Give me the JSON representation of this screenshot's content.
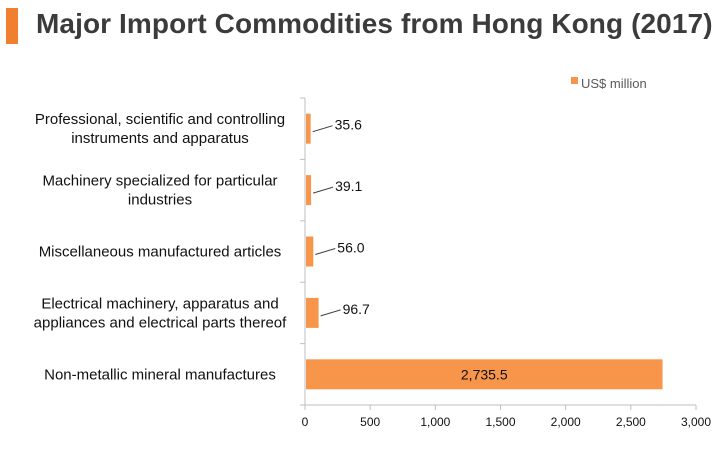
{
  "title": "Major Import Commodities from Hong Kong (2017)",
  "colors": {
    "accent": "#f07f2f",
    "bar": "#f7964a",
    "title": "#3b3b3b"
  },
  "chart_data": {
    "type": "bar",
    "orientation": "horizontal",
    "categories": [
      [
        "Professional, scientific and controlling",
        "instruments and apparatus"
      ],
      [
        "Machinery specialized for particular",
        "industries"
      ],
      [
        "Miscellaneous manufactured articles"
      ],
      [
        "Electrical machinery, apparatus and",
        "appliances and electrical parts thereof"
      ],
      [
        "Non-metallic mineral manufactures"
      ]
    ],
    "series": [
      {
        "name": "US$ million",
        "values": [
          35.6,
          39.1,
          56.0,
          96.7,
          2735.5
        ]
      }
    ],
    "data_labels": [
      "35.6",
      "39.1",
      "56.0",
      "96.7",
      "2,735.5"
    ],
    "xlim": [
      0,
      3000
    ],
    "xticks": [
      0,
      500,
      1000,
      1500,
      2000,
      2500,
      3000
    ],
    "xtick_labels": [
      "0",
      "500",
      "1,000",
      "1,500",
      "2,000",
      "2,500",
      "3,000"
    ],
    "legend_position": "top-right",
    "grid": false
  }
}
